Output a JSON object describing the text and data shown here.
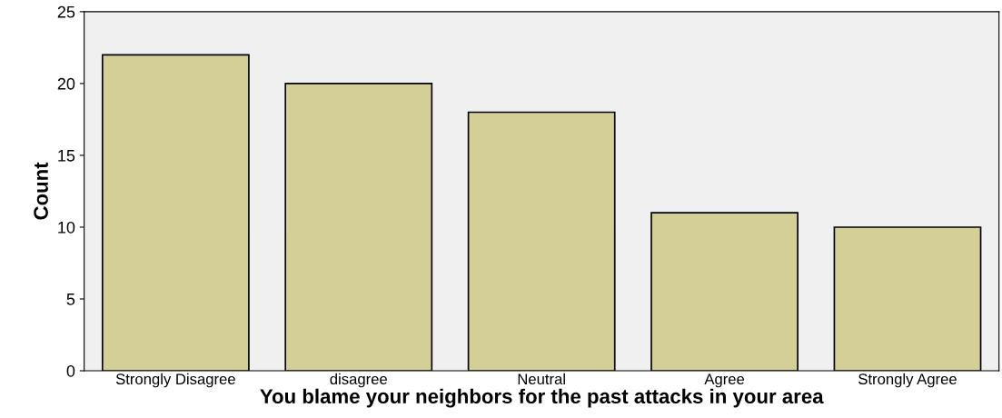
{
  "chart_data": {
    "type": "bar",
    "xlabel": "You blame your neighbors for the past attacks in your area",
    "ylabel": "Count",
    "categories": [
      "Strongly Disagree",
      "disagree",
      "Neutral",
      "Agree",
      "Strongly Agree"
    ],
    "values": [
      22,
      20,
      18,
      11,
      10
    ],
    "color": "#d3cf97",
    "ylim": [
      0,
      25
    ],
    "yticks": [
      0,
      5,
      10,
      15,
      20,
      25
    ],
    "grid": false,
    "legend": false
  }
}
